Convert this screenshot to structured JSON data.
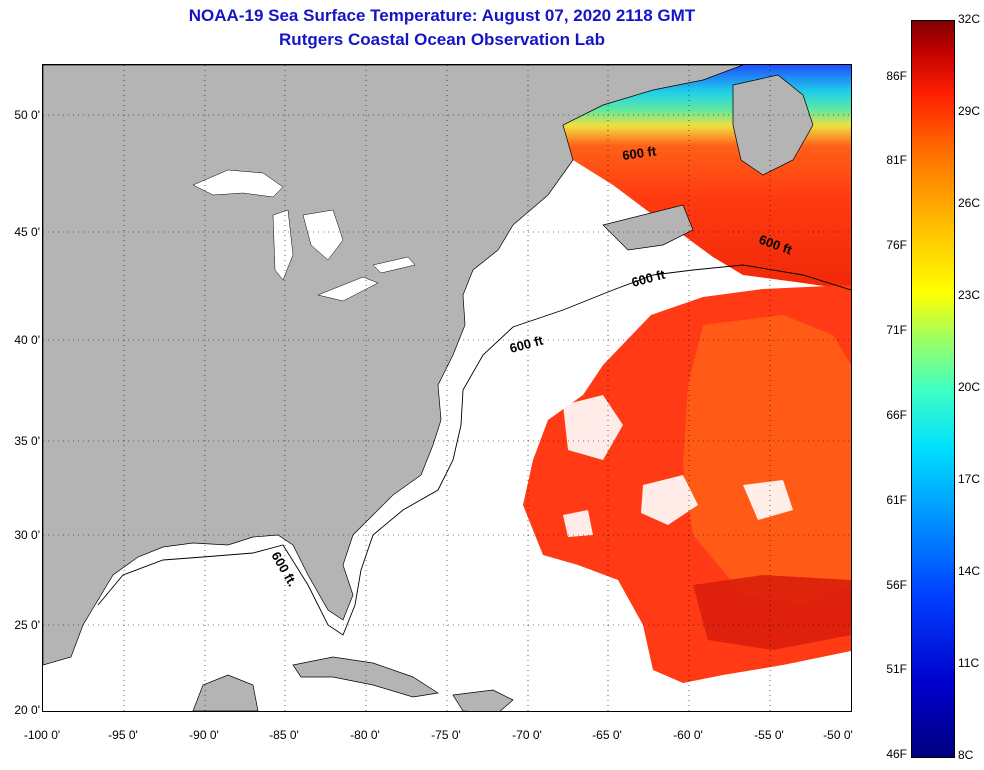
{
  "title": "NOAA-19 Sea Surface Temperature:  August 07, 2020 2118 GMT",
  "subtitle": "Rutgers Coastal Ocean Observation Lab",
  "map": {
    "lon_range": [
      -100,
      -50
    ],
    "lat_range": [
      20,
      52.5
    ],
    "lat_ticks": [
      {
        "value": 50,
        "label": "50 0'"
      },
      {
        "value": 45,
        "label": "45 0'"
      },
      {
        "value": 40,
        "label": "40 0'"
      },
      {
        "value": 35,
        "label": "35 0'"
      },
      {
        "value": 30,
        "label": "30 0'"
      },
      {
        "value": 25,
        "label": "25 0'"
      },
      {
        "value": 20,
        "label": "20 0'"
      }
    ],
    "lon_ticks": [
      {
        "value": -100,
        "label": "-100 0'"
      },
      {
        "value": -95,
        "label": "-95 0'"
      },
      {
        "value": -90,
        "label": "-90 0'"
      },
      {
        "value": -85,
        "label": "-85 0'"
      },
      {
        "value": -80,
        "label": "-80 0'"
      },
      {
        "value": -75,
        "label": "-75 0'"
      },
      {
        "value": -70,
        "label": "-70 0'"
      },
      {
        "value": -65,
        "label": "-65 0'"
      },
      {
        "value": -60,
        "label": "-60 0'"
      },
      {
        "value": -55,
        "label": "-55 0'"
      },
      {
        "value": -50,
        "label": "-50 0'"
      }
    ],
    "contour_labels": [
      "600 ft",
      "600 ft",
      "600 ft",
      "600 ft",
      "600 ft."
    ],
    "land_color": "#b4b4b4",
    "ocean_nodata_color": "#ffffff"
  },
  "colorbar": {
    "fahrenheit": [
      "86F",
      "81F",
      "76F",
      "71F",
      "66F",
      "61F",
      "56F",
      "51F",
      "46F"
    ],
    "celsius": [
      "32C",
      "29C",
      "26C",
      "23C",
      "20C",
      "17C",
      "14C",
      "11C",
      "8C"
    ],
    "min_c": 8,
    "max_c": 32
  }
}
